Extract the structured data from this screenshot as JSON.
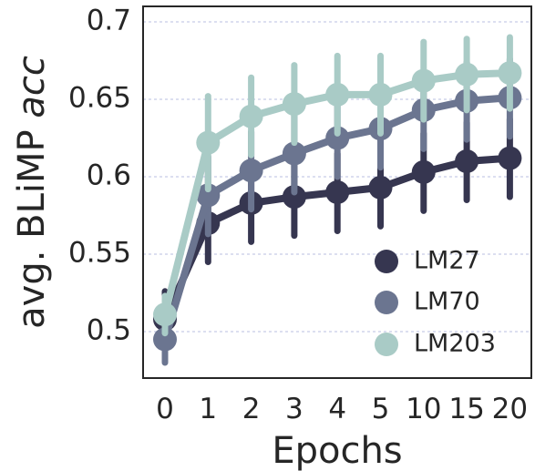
{
  "chart_data": {
    "type": "line",
    "xlabel": "Epochs",
    "ylabel": "avg. BLiMP acc",
    "categories": [
      "0",
      "1",
      "2",
      "3",
      "4",
      "5",
      "10",
      "15",
      "20"
    ],
    "ylim": [
      0.47,
      0.71
    ],
    "yticks": [
      0.5,
      0.55,
      0.6,
      0.65,
      0.7
    ],
    "ytick_labels": [
      "0.5",
      "0.55",
      "0.6",
      "0.65",
      "0.7"
    ],
    "grid": true,
    "legend_position": "lower-right",
    "series": [
      {
        "name": "LM27",
        "color": "#363650",
        "values": [
          0.508,
          0.57,
          0.583,
          0.587,
          0.59,
          0.593,
          0.603,
          0.61,
          0.612
        ],
        "err": [
          0.018,
          0.025,
          0.025,
          0.025,
          0.025,
          0.025,
          0.025,
          0.025,
          0.025
        ]
      },
      {
        "name": "LM70",
        "color": "#6b7590",
        "values": [
          0.495,
          0.588,
          0.604,
          0.615,
          0.625,
          0.631,
          0.643,
          0.649,
          0.651
        ],
        "err": [
          0.015,
          0.025,
          0.025,
          0.025,
          0.025,
          0.025,
          0.025,
          0.025,
          0.025
        ]
      },
      {
        "name": "LM203",
        "color": "#a9cbc6",
        "values": [
          0.511,
          0.622,
          0.639,
          0.647,
          0.653,
          0.653,
          0.662,
          0.666,
          0.667
        ],
        "err": [
          0.012,
          0.03,
          0.025,
          0.025,
          0.025,
          0.025,
          0.025,
          0.023,
          0.023
        ]
      }
    ]
  }
}
